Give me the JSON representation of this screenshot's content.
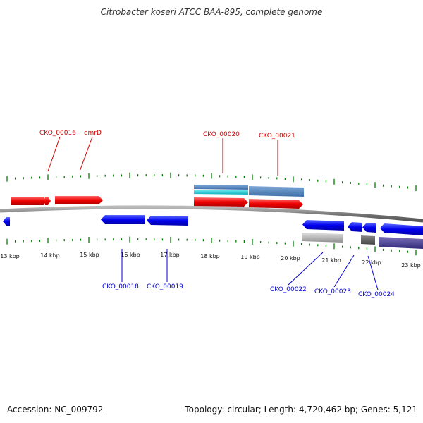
{
  "title": "Citrobacter koseri ATCC BAA-895, complete genome",
  "footer": {
    "accession": "Accession: NC_009792",
    "topology": "Topology: circular; Length: 4,720,462 bp; Genes: 5,121"
  },
  "colors": {
    "forward": "#ff0000",
    "reverse": "#0000ff",
    "tick": "#008000",
    "backbone": "#888888"
  },
  "ticks": [
    {
      "label": "13 kbp"
    },
    {
      "label": "14 kbp"
    },
    {
      "label": "15 kbp"
    },
    {
      "label": "16 kbp"
    },
    {
      "label": "17 kbp"
    },
    {
      "label": "18 kbp"
    },
    {
      "label": "19 kbp"
    },
    {
      "label": "20 kbp"
    },
    {
      "label": "21 kbp"
    },
    {
      "label": "22 kbp"
    },
    {
      "label": "23 kbp"
    }
  ],
  "gene_labels": {
    "cko16": "CKO_00016",
    "emrd": "emrD",
    "cko20": "CKO_00020",
    "cko21": "CKO_00021",
    "cko18": "CKO_00018",
    "cko19": "CKO_00019",
    "cko22": "CKO_00022",
    "cko23": "CKO_00023",
    "cko24": "CKO_00024"
  }
}
